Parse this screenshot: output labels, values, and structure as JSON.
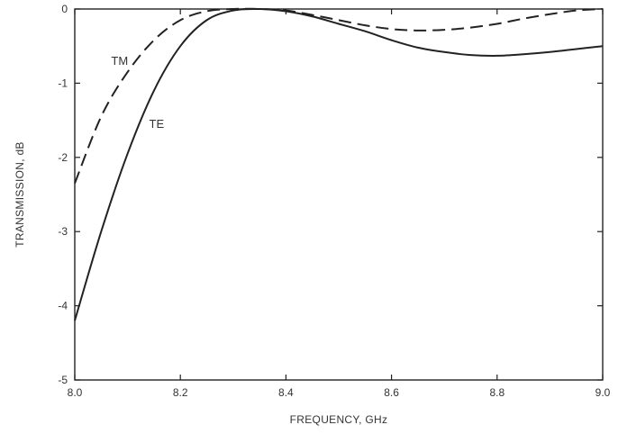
{
  "chart_data": {
    "type": "line",
    "title": "",
    "xlabel": "FREQUENCY, GHz",
    "ylabel": "TRANSMISSION, dB",
    "xlim": [
      8.0,
      9.0
    ],
    "ylim": [
      -5,
      0
    ],
    "x_ticks": [
      8.0,
      8.2,
      8.4,
      8.6,
      8.8,
      9.0
    ],
    "x_tick_labels": [
      "8.0",
      "8.2",
      "8.4",
      "8.6",
      "8.8",
      "9.0"
    ],
    "y_ticks": [
      0,
      -1,
      -2,
      -3,
      -4,
      -5
    ],
    "y_tick_labels": [
      "0",
      "-1",
      "-2",
      "-3",
      "-4",
      "-5"
    ],
    "grid": false,
    "series": [
      {
        "name": "TM",
        "style": "dashed",
        "color": "#222222",
        "x": [
          8.0,
          8.05,
          8.1,
          8.15,
          8.2,
          8.25,
          8.3,
          8.35,
          8.4,
          8.45,
          8.5,
          8.55,
          8.6,
          8.65,
          8.7,
          8.75,
          8.8,
          8.85,
          8.9,
          8.95,
          9.0
        ],
        "y": [
          -2.35,
          -1.45,
          -0.85,
          -0.42,
          -0.15,
          -0.03,
          0.0,
          0.0,
          -0.02,
          -0.08,
          -0.15,
          -0.22,
          -0.27,
          -0.29,
          -0.28,
          -0.25,
          -0.2,
          -0.13,
          -0.07,
          -0.02,
          0.0
        ]
      },
      {
        "name": "TE",
        "style": "solid",
        "color": "#222222",
        "x": [
          8.0,
          8.05,
          8.1,
          8.15,
          8.2,
          8.25,
          8.3,
          8.35,
          8.4,
          8.45,
          8.5,
          8.55,
          8.6,
          8.65,
          8.7,
          8.75,
          8.8,
          8.85,
          8.9,
          8.95,
          9.0
        ],
        "y": [
          -4.2,
          -3.0,
          -1.95,
          -1.1,
          -0.5,
          -0.15,
          -0.02,
          0.0,
          -0.03,
          -0.1,
          -0.2,
          -0.3,
          -0.42,
          -0.52,
          -0.58,
          -0.62,
          -0.63,
          -0.61,
          -0.58,
          -0.54,
          -0.5
        ]
      }
    ],
    "annotations": [
      {
        "text": "TM",
        "series": "TM",
        "x": 8.085,
        "y": -0.75
      },
      {
        "text": "TE",
        "series": "TE",
        "x": 8.155,
        "y": -1.6
      }
    ]
  }
}
